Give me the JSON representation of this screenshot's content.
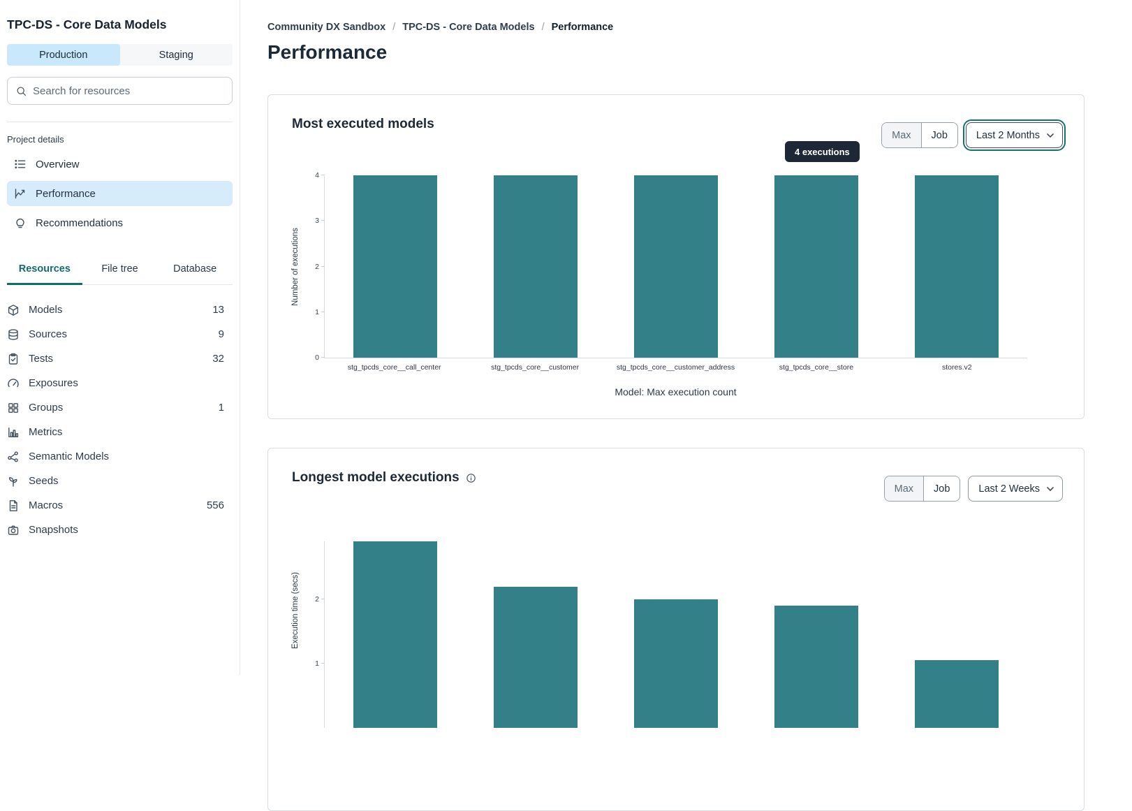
{
  "sidebar": {
    "project_title": "TPC-DS - Core Data Models",
    "environment_tabs": [
      {
        "label": "Production",
        "selected": true
      },
      {
        "label": "Staging",
        "selected": false
      }
    ],
    "search": {
      "placeholder": "Search for resources"
    },
    "project_details_label": "Project details",
    "nav_items": [
      {
        "label": "Overview",
        "icon": "list-icon",
        "selected": false
      },
      {
        "label": "Performance",
        "icon": "chart-line-icon",
        "selected": true
      },
      {
        "label": "Recommendations",
        "icon": "lightbulb-icon",
        "selected": false
      }
    ],
    "resource_tabs": [
      {
        "label": "Resources",
        "selected": true
      },
      {
        "label": "File tree",
        "selected": false
      },
      {
        "label": "Database",
        "selected": false
      }
    ],
    "resources": [
      {
        "label": "Models",
        "icon": "cube-icon",
        "count": "13"
      },
      {
        "label": "Sources",
        "icon": "database-icon",
        "count": "9"
      },
      {
        "label": "Tests",
        "icon": "clipboard-check-icon",
        "count": "32"
      },
      {
        "label": "Exposures",
        "icon": "gauge-icon",
        "count": ""
      },
      {
        "label": "Groups",
        "icon": "grid-icon",
        "count": "1"
      },
      {
        "label": "Metrics",
        "icon": "bar-chart-icon",
        "count": ""
      },
      {
        "label": "Semantic Models",
        "icon": "graph-nodes-icon",
        "count": ""
      },
      {
        "label": "Seeds",
        "icon": "sprout-icon",
        "count": ""
      },
      {
        "label": "Macros",
        "icon": "file-text-icon",
        "count": "556"
      },
      {
        "label": "Snapshots",
        "icon": "camera-icon",
        "count": ""
      }
    ]
  },
  "main": {
    "breadcrumb": {
      "items": [
        "Community DX Sandbox",
        "TPC-DS - Core Data Models",
        "Performance"
      ],
      "separator": "/"
    },
    "page_title": "Performance",
    "card1": {
      "title": "Most executed models",
      "toggle_max": "Max",
      "toggle_job": "Job",
      "range_selector": "Last 2 Months",
      "tooltip": "4 executions"
    },
    "card2": {
      "title": "Longest model executions",
      "toggle_max": "Max",
      "toggle_job": "Job",
      "range_selector": "Last 2 Weeks"
    }
  },
  "chart_data": [
    {
      "type": "bar",
      "title": "Most executed models",
      "categories": [
        "stg_tpcds_core__call_center",
        "stg_tpcds_core__customer",
        "stg_tpcds_core__customer_address",
        "stg_tpcds_core__store",
        "stores.v2"
      ],
      "values": [
        4,
        4,
        4,
        4,
        4
      ],
      "ylabel": "Number of executions",
      "xlabel": "Model: Max execution count",
      "ylim": [
        0,
        4
      ],
      "yticks": [
        0,
        1,
        2,
        3,
        4
      ],
      "grid": false,
      "legend": false,
      "bar_color": "#338088"
    },
    {
      "type": "bar",
      "title": "Longest model executions",
      "categories": [],
      "values": [
        2.9,
        2.2,
        2.0,
        1.9,
        1.05
      ],
      "ylabel": "Execution time (secs)",
      "ylim": [
        0,
        2.9
      ],
      "yticks": [
        1,
        2
      ],
      "grid": false,
      "legend": false,
      "bar_color": "#338088",
      "note": "chart bottom cut off by viewport"
    }
  ],
  "colors": {
    "bar_teal": "#338088",
    "selected_blue": "#d7ecfa",
    "env_selected_blue": "#c9e8fb",
    "tab_teal": "#156a6d",
    "tooltip_bg": "#1d2735",
    "card_border": "#d8dde2"
  }
}
